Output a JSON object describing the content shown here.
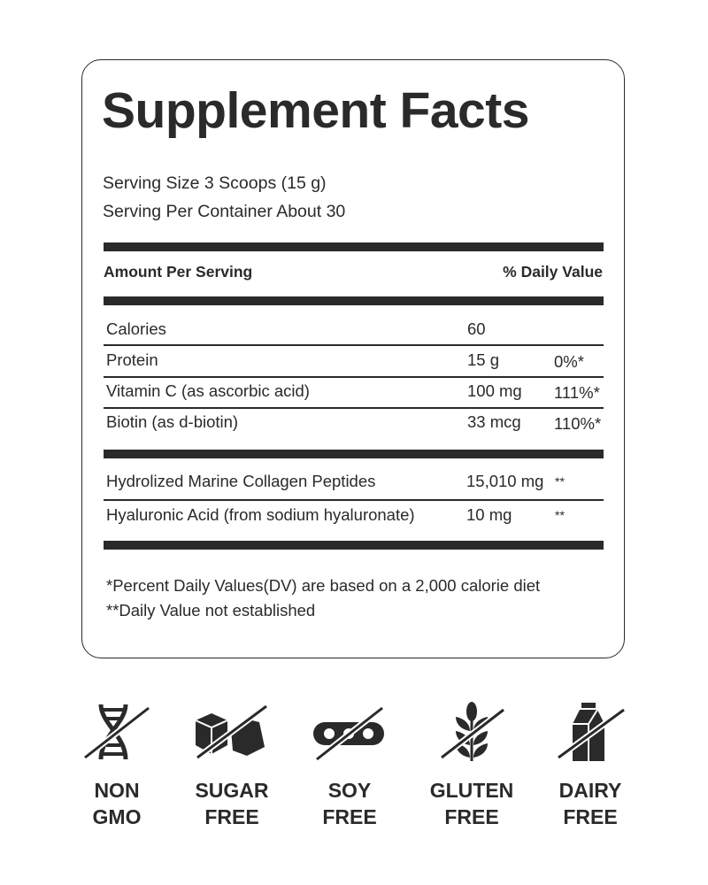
{
  "title": "Supplement Facts",
  "serving_size": "Serving Size 3 Scoops (15 g)",
  "servings_per_container": "Serving Per Container About 30",
  "header": {
    "amount": "Amount Per Serving",
    "dv": "% Daily Value"
  },
  "rows": [
    {
      "name": "Calories",
      "amount": "60",
      "dv": ""
    },
    {
      "name": "Protein",
      "amount": "15 g",
      "dv": "0%*"
    },
    {
      "name": "Vitamin C (as ascorbic acid)",
      "amount": "100 mg",
      "dv": "111%*"
    },
    {
      "name": "Biotin (as d-biotin)",
      "amount": "33 mcg",
      "dv": "110%*"
    }
  ],
  "other_rows": [
    {
      "name": "Hydrolized Marine Collagen Peptides",
      "amount": "15,010 mg",
      "dv": "**"
    },
    {
      "name": "Hyaluronic Acid (from sodium hyaluronate)",
      "amount": "10 mg",
      "dv": "**"
    }
  ],
  "footnotes": [
    "*Percent Daily Values(DV) are based on a 2,000 calorie diet",
    "**Daily Value not established"
  ],
  "badges": [
    {
      "icon": "dna-crossed-icon",
      "line1": "NON",
      "line2": "GMO"
    },
    {
      "icon": "sugar-cubes-crossed-icon",
      "line1": "SUGAR",
      "line2": "FREE"
    },
    {
      "icon": "soybean-crossed-icon",
      "line1": "SOY",
      "line2": "FREE"
    },
    {
      "icon": "wheat-crossed-icon",
      "line1": "GLUTEN",
      "line2": "FREE"
    },
    {
      "icon": "milk-carton-crossed-icon",
      "line1": "DAIRY",
      "line2": "FREE"
    }
  ],
  "colors": {
    "ink": "#2a2a2a",
    "background": "#ffffff"
  }
}
